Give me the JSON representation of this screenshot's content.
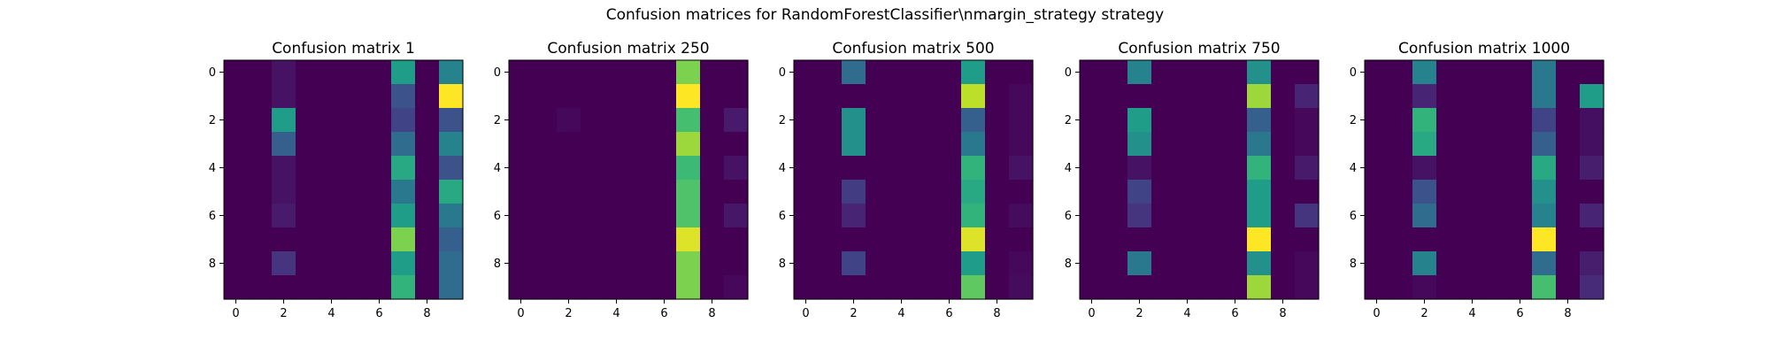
{
  "figure": {
    "suptitle": "Confusion matrices for RandomForestClassifier\\nmargin_strategy strategy"
  },
  "colormap": {
    "name": "viridis",
    "stops": [
      "#440154",
      "#482878",
      "#3e4a89",
      "#31688e",
      "#26828e",
      "#1f9e89",
      "#35b779",
      "#6ece58",
      "#b5de2b",
      "#fde725"
    ]
  },
  "chart_data": [
    {
      "type": "heatmap",
      "title": "Confusion matrix 1",
      "xticks": [
        "0",
        "2",
        "4",
        "6",
        "8"
      ],
      "yticks": [
        "0",
        "2",
        "4",
        "6",
        "8"
      ],
      "xlim": [
        -0.5,
        9.5
      ],
      "ylim": [
        9.5,
        -0.5
      ],
      "grid": false,
      "matrix": [
        [
          0.0,
          0.0,
          0.05,
          0.0,
          0.0,
          0.0,
          0.0,
          0.55,
          0.0,
          0.45
        ],
        [
          0.0,
          0.0,
          0.05,
          0.0,
          0.0,
          0.0,
          0.0,
          0.25,
          0.0,
          1.0
        ],
        [
          0.0,
          0.0,
          0.55,
          0.0,
          0.0,
          0.0,
          0.0,
          0.2,
          0.0,
          0.25
        ],
        [
          0.0,
          0.0,
          0.3,
          0.0,
          0.0,
          0.0,
          0.0,
          0.35,
          0.0,
          0.45
        ],
        [
          0.0,
          0.0,
          0.05,
          0.0,
          0.0,
          0.0,
          0.0,
          0.6,
          0.0,
          0.25
        ],
        [
          0.0,
          0.0,
          0.05,
          0.0,
          0.0,
          0.0,
          0.0,
          0.4,
          0.0,
          0.6
        ],
        [
          0.0,
          0.0,
          0.07,
          0.0,
          0.0,
          0.0,
          0.0,
          0.55,
          0.0,
          0.4
        ],
        [
          0.0,
          0.0,
          0.0,
          0.0,
          0.0,
          0.0,
          0.0,
          0.8,
          0.0,
          0.3
        ],
        [
          0.0,
          0.0,
          0.15,
          0.0,
          0.0,
          0.0,
          0.0,
          0.55,
          0.0,
          0.35
        ],
        [
          0.0,
          0.0,
          0.0,
          0.0,
          0.0,
          0.0,
          0.0,
          0.65,
          0.0,
          0.35
        ]
      ]
    },
    {
      "type": "heatmap",
      "title": "Confusion matrix 250",
      "xticks": [
        "0",
        "2",
        "4",
        "6",
        "8"
      ],
      "yticks": [
        "0",
        "2",
        "4",
        "6",
        "8"
      ],
      "xlim": [
        -0.5,
        9.5
      ],
      "ylim": [
        9.5,
        -0.5
      ],
      "grid": false,
      "matrix": [
        [
          0.0,
          0.0,
          0.0,
          0.0,
          0.0,
          0.0,
          0.0,
          0.8,
          0.0,
          0.0
        ],
        [
          0.0,
          0.0,
          0.0,
          0.0,
          0.0,
          0.0,
          0.0,
          1.0,
          0.0,
          0.0
        ],
        [
          0.0,
          0.0,
          0.02,
          0.0,
          0.0,
          0.0,
          0.0,
          0.7,
          0.0,
          0.07
        ],
        [
          0.0,
          0.0,
          0.0,
          0.0,
          0.0,
          0.0,
          0.0,
          0.85,
          0.0,
          0.0
        ],
        [
          0.0,
          0.0,
          0.0,
          0.0,
          0.0,
          0.0,
          0.0,
          0.68,
          0.0,
          0.05
        ],
        [
          0.0,
          0.0,
          0.0,
          0.0,
          0.0,
          0.0,
          0.0,
          0.72,
          0.0,
          0.0
        ],
        [
          0.0,
          0.0,
          0.0,
          0.0,
          0.0,
          0.0,
          0.0,
          0.72,
          0.0,
          0.06
        ],
        [
          0.0,
          0.0,
          0.0,
          0.0,
          0.0,
          0.0,
          0.0,
          0.95,
          0.0,
          0.0
        ],
        [
          0.0,
          0.0,
          0.0,
          0.0,
          0.0,
          0.0,
          0.0,
          0.8,
          0.0,
          0.0
        ],
        [
          0.0,
          0.0,
          0.0,
          0.0,
          0.0,
          0.0,
          0.0,
          0.8,
          0.0,
          0.02
        ]
      ]
    },
    {
      "type": "heatmap",
      "title": "Confusion matrix 500",
      "xticks": [
        "0",
        "2",
        "4",
        "6",
        "8"
      ],
      "yticks": [
        "0",
        "2",
        "4",
        "6",
        "8"
      ],
      "xlim": [
        -0.5,
        9.5
      ],
      "ylim": [
        9.5,
        -0.5
      ],
      "grid": false,
      "matrix": [
        [
          0.0,
          0.0,
          0.35,
          0.0,
          0.0,
          0.0,
          0.0,
          0.55,
          0.0,
          0.0
        ],
        [
          0.0,
          0.0,
          0.0,
          0.0,
          0.0,
          0.0,
          0.0,
          0.9,
          0.0,
          0.02
        ],
        [
          0.0,
          0.0,
          0.5,
          0.0,
          0.0,
          0.0,
          0.0,
          0.3,
          0.0,
          0.02
        ],
        [
          0.0,
          0.0,
          0.5,
          0.0,
          0.0,
          0.0,
          0.0,
          0.4,
          0.0,
          0.02
        ],
        [
          0.0,
          0.0,
          0.0,
          0.0,
          0.0,
          0.0,
          0.0,
          0.65,
          0.0,
          0.05
        ],
        [
          0.0,
          0.0,
          0.18,
          0.0,
          0.0,
          0.0,
          0.0,
          0.6,
          0.0,
          0.0
        ],
        [
          0.0,
          0.0,
          0.1,
          0.0,
          0.0,
          0.0,
          0.0,
          0.65,
          0.0,
          0.03
        ],
        [
          0.0,
          0.0,
          0.0,
          0.0,
          0.0,
          0.0,
          0.0,
          0.95,
          0.0,
          0.0
        ],
        [
          0.0,
          0.0,
          0.2,
          0.0,
          0.0,
          0.0,
          0.0,
          0.55,
          0.0,
          0.02
        ],
        [
          0.0,
          0.0,
          0.0,
          0.0,
          0.0,
          0.0,
          0.0,
          0.75,
          0.0,
          0.03
        ]
      ]
    },
    {
      "type": "heatmap",
      "title": "Confusion matrix 750",
      "xticks": [
        "0",
        "2",
        "4",
        "6",
        "8"
      ],
      "yticks": [
        "0",
        "2",
        "4",
        "6",
        "8"
      ],
      "xlim": [
        -0.5,
        9.5
      ],
      "ylim": [
        9.5,
        -0.5
      ],
      "grid": false,
      "matrix": [
        [
          0.0,
          0.0,
          0.45,
          0.0,
          0.0,
          0.0,
          0.0,
          0.5,
          0.0,
          0.0
        ],
        [
          0.0,
          0.0,
          0.0,
          0.0,
          0.0,
          0.0,
          0.0,
          0.85,
          0.0,
          0.1
        ],
        [
          0.0,
          0.0,
          0.55,
          0.0,
          0.0,
          0.0,
          0.0,
          0.3,
          0.0,
          0.02
        ],
        [
          0.0,
          0.0,
          0.5,
          0.0,
          0.0,
          0.0,
          0.0,
          0.4,
          0.0,
          0.02
        ],
        [
          0.0,
          0.0,
          0.05,
          0.0,
          0.0,
          0.0,
          0.0,
          0.65,
          0.0,
          0.07
        ],
        [
          0.0,
          0.0,
          0.2,
          0.0,
          0.0,
          0.0,
          0.0,
          0.55,
          0.0,
          0.0
        ],
        [
          0.0,
          0.0,
          0.15,
          0.0,
          0.0,
          0.0,
          0.0,
          0.55,
          0.0,
          0.15
        ],
        [
          0.0,
          0.0,
          0.0,
          0.0,
          0.0,
          0.0,
          0.0,
          1.0,
          0.0,
          0.0
        ],
        [
          0.0,
          0.0,
          0.4,
          0.0,
          0.0,
          0.0,
          0.0,
          0.5,
          0.0,
          0.02
        ],
        [
          0.0,
          0.0,
          0.0,
          0.0,
          0.0,
          0.0,
          0.0,
          0.85,
          0.0,
          0.02
        ]
      ]
    },
    {
      "type": "heatmap",
      "title": "Confusion matrix 1000",
      "xticks": [
        "0",
        "2",
        "4",
        "6",
        "8"
      ],
      "yticks": [
        "0",
        "2",
        "4",
        "6",
        "8"
      ],
      "xlim": [
        -0.5,
        9.5
      ],
      "ylim": [
        9.5,
        -0.5
      ],
      "grid": false,
      "matrix": [
        [
          0.0,
          0.0,
          0.45,
          0.0,
          0.0,
          0.0,
          0.0,
          0.4,
          0.0,
          0.0
        ],
        [
          0.0,
          0.0,
          0.1,
          0.0,
          0.0,
          0.0,
          0.0,
          0.4,
          0.0,
          0.55
        ],
        [
          0.0,
          0.0,
          0.65,
          0.0,
          0.0,
          0.0,
          0.0,
          0.2,
          0.0,
          0.04
        ],
        [
          0.0,
          0.0,
          0.6,
          0.0,
          0.0,
          0.0,
          0.0,
          0.3,
          0.0,
          0.04
        ],
        [
          0.0,
          0.0,
          0.05,
          0.0,
          0.0,
          0.0,
          0.0,
          0.6,
          0.0,
          0.08
        ],
        [
          0.0,
          0.0,
          0.25,
          0.0,
          0.0,
          0.0,
          0.0,
          0.5,
          0.0,
          0.0
        ],
        [
          0.0,
          0.0,
          0.35,
          0.0,
          0.0,
          0.0,
          0.0,
          0.45,
          0.0,
          0.1
        ],
        [
          0.0,
          0.0,
          0.0,
          0.0,
          0.0,
          0.0,
          0.0,
          1.0,
          0.0,
          0.0
        ],
        [
          0.0,
          0.0,
          0.45,
          0.0,
          0.0,
          0.0,
          0.0,
          0.35,
          0.0,
          0.08
        ],
        [
          0.0,
          0.0,
          0.02,
          0.0,
          0.0,
          0.0,
          0.0,
          0.7,
          0.0,
          0.12
        ]
      ]
    }
  ]
}
